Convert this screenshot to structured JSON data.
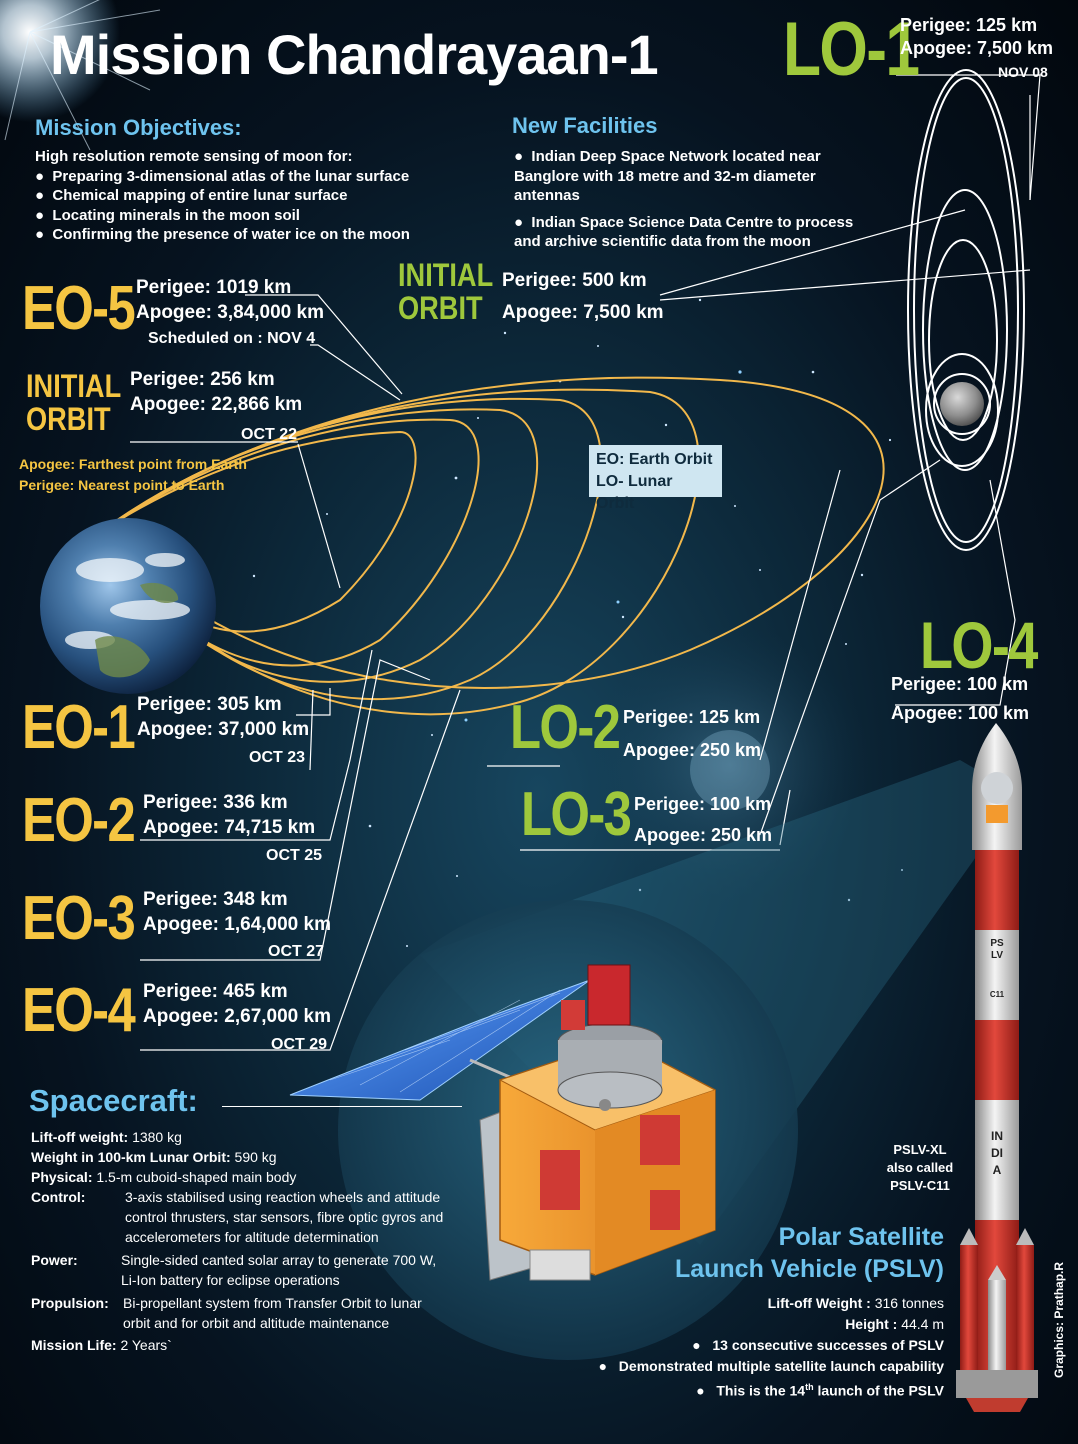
{
  "title": "Mission Chandrayaan-1",
  "objectives": {
    "heading": "Mission Objectives:",
    "lead": "High resolution remote sensing of moon for:",
    "items": [
      "Preparing 3-dimensional atlas of the lunar surface",
      "Chemical mapping of entire lunar surface",
      "Locating minerals in the moon soil",
      "Confirming the presence of water ice on the moon"
    ]
  },
  "facilities": {
    "heading": "New Facilities",
    "items": [
      "Indian Deep Space Network located near Banglore with 18 metre and 32-m diameter antennas",
      "Indian Space Science Data Centre to process and archive scientific data from the moon"
    ]
  },
  "lo1": {
    "label": "LO-1",
    "perigee": "Perigee: 125 km",
    "apogee": "Apogee: 7,500 km",
    "date": "NOV 08"
  },
  "lunar_initial": {
    "label_1": "INITIAL",
    "label_2": "ORBIT",
    "perigee": "Perigee: 500 km",
    "apogee": "Apogee: 7,500 km"
  },
  "eo5": {
    "label": "EO-5",
    "perigee": "Perigee: 1019 km",
    "apogee": "Apogee: 3,84,000 km",
    "date": "Scheduled on : NOV 4"
  },
  "earth_initial": {
    "label_1": "INITIAL",
    "label_2": "ORBIT",
    "perigee": "Perigee: 256 km",
    "apogee": "Apogee: 22,866 km",
    "date": "OCT 22"
  },
  "definitions": {
    "apogee": "Apogee: Farthest point from Earth",
    "perigee": "Perigee: Nearest point to Earth"
  },
  "legend": {
    "eo": "EO: Earth Orbit",
    "lo": "LO- Lunar Orbit"
  },
  "lo4": {
    "label": "LO-4",
    "perigee": "Perigee: 100 km",
    "apogee": "Apogee: 100 km"
  },
  "lo2": {
    "label": "LO-2",
    "perigee": "Perigee: 125 km",
    "apogee": "Apogee: 250 km"
  },
  "lo3": {
    "label": "LO-3",
    "perigee": "Perigee: 100 km",
    "apogee": "Apogee: 250 km"
  },
  "eo1": {
    "label": "EO-1",
    "perigee": "Perigee: 305 km",
    "apogee": "Apogee: 37,000 km",
    "date": "OCT 23"
  },
  "eo2": {
    "label": "EO-2",
    "perigee": "Perigee: 336 km",
    "apogee": "Apogee: 74,715 km",
    "date": "OCT 25"
  },
  "eo3": {
    "label": "EO-3",
    "perigee": "Perigee: 348 km",
    "apogee": "Apogee: 1,64,000 km",
    "date": "OCT 27"
  },
  "eo4": {
    "label": "EO-4",
    "perigee": "Perigee: 465 km",
    "apogee": "Apogee: 2,67,000 km",
    "date": "OCT 29"
  },
  "spacecraft": {
    "heading": "Spacecraft:",
    "rows": [
      {
        "key": "Lift-off weight:",
        "value": "1380 kg"
      },
      {
        "key": "Weight in 100-km Lunar Orbit:",
        "value": "590 kg"
      },
      {
        "key": "Physical:",
        "value": "1.5-m cuboid-shaped main body"
      },
      {
        "key": "Control:",
        "value": "3-axis stabilised using reaction wheels and attitude control thrusters, star sensors, fibre optic gyros and accelerometers for altitude determination"
      },
      {
        "key": "Power:",
        "value": "Single-sided canted solar array to generate 700 W, Li-Ion battery for eclipse operations"
      },
      {
        "key": "Propulsion:",
        "value": "Bi-propellant system from Transfer Orbit to lunar orbit and for orbit and altitude maintenance"
      },
      {
        "key": "Mission Life:",
        "value": "2 Years`"
      }
    ]
  },
  "rocket": {
    "body_text_1": "PSLV",
    "body_text_2": "C11",
    "body_text_3": "INDIA",
    "caption_1": "PSLV-XL",
    "caption_2": "also called",
    "caption_3": "PSLV-C11"
  },
  "pslv": {
    "heading_1": "Polar Satellite",
    "heading_2": "Launch Vehicle (PSLV)",
    "liftoff_key": "Lift-off Weight :",
    "liftoff_value": "316 tonnes",
    "height_key": "Height :",
    "height_value": "44.4 m",
    "bullet_1": "13 consecutive successes of PSLV",
    "bullet_2": "Demonstrated multiple satellite launch capability",
    "bullet_3_pre": "This is the 14",
    "bullet_3_sup": "th",
    "bullet_3_post": " launch of the PSLV"
  },
  "credit": "Graphics: Prathap.R",
  "colors": {
    "earth_orbit_label": "#f5c542",
    "lunar_orbit_label": "#9fc83c",
    "heading_blue": "#6ec3ee",
    "orbit_line": "#f2b84b",
    "rocket_red": "#d8342a"
  }
}
